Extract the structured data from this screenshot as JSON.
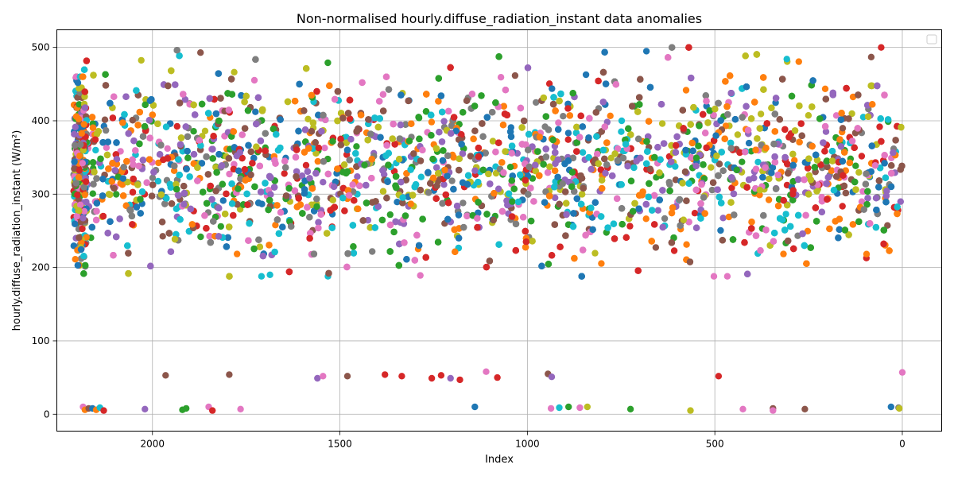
{
  "chart_data": {
    "type": "scatter",
    "title": "Non-normalised hourly.diffuse_radiation_instant data anomalies",
    "xlabel": "Index",
    "ylabel": "hourly.diffuse_radiation_instant (W/m²)",
    "x_inverted": true,
    "xlim": [
      2255,
      -105
    ],
    "ylim": [
      -23,
      524
    ],
    "x_ticks": [
      2000,
      1500,
      1000,
      500,
      0
    ],
    "y_ticks": [
      0,
      100,
      200,
      300,
      400,
      500
    ],
    "grid": true,
    "legend": "top-right, empty",
    "series_count_estimate": 220,
    "main_band": {
      "x_range": [
        2210,
        0
      ],
      "y_typical_range": [
        230,
        440
      ],
      "y_extreme_range": [
        188,
        500
      ],
      "colors": [
        "#1f77b4",
        "#ff7f0e",
        "#2ca02c",
        "#d62728",
        "#9467bd",
        "#8c564b",
        "#e377c2",
        "#7f7f7f",
        "#bcbd22",
        "#17becf"
      ]
    },
    "low_outliers": [
      {
        "x": 2185,
        "y": 10,
        "color": "#e377c2"
      },
      {
        "x": 2180,
        "y": 6,
        "color": "#ff7f0e"
      },
      {
        "x": 2170,
        "y": 8,
        "color": "#8c564b"
      },
      {
        "x": 2160,
        "y": 8,
        "color": "#1f77b4"
      },
      {
        "x": 2150,
        "y": 6,
        "color": "#ff7f0e"
      },
      {
        "x": 2140,
        "y": 9,
        "color": "#17becf"
      },
      {
        "x": 2130,
        "y": 5,
        "color": "#d62728"
      },
      {
        "x": 2020,
        "y": 7,
        "color": "#9467bd"
      },
      {
        "x": 1965,
        "y": 53,
        "color": "#8c564b"
      },
      {
        "x": 1920,
        "y": 6,
        "color": "#2ca02c"
      },
      {
        "x": 1910,
        "y": 8,
        "color": "#2ca02c"
      },
      {
        "x": 1850,
        "y": 10,
        "color": "#e377c2"
      },
      {
        "x": 1840,
        "y": 5,
        "color": "#d62728"
      },
      {
        "x": 1795,
        "y": 54,
        "color": "#8c564b"
      },
      {
        "x": 1765,
        "y": 7,
        "color": "#e377c2"
      },
      {
        "x": 1560,
        "y": 49,
        "color": "#9467bd"
      },
      {
        "x": 1545,
        "y": 52,
        "color": "#e377c2"
      },
      {
        "x": 1480,
        "y": 52,
        "color": "#8c564b"
      },
      {
        "x": 1380,
        "y": 54,
        "color": "#d62728"
      },
      {
        "x": 1335,
        "y": 52,
        "color": "#d62728"
      },
      {
        "x": 1255,
        "y": 49,
        "color": "#d62728"
      },
      {
        "x": 1230,
        "y": 53,
        "color": "#d62728"
      },
      {
        "x": 1205,
        "y": 49,
        "color": "#9467bd"
      },
      {
        "x": 1180,
        "y": 47,
        "color": "#d62728"
      },
      {
        "x": 1140,
        "y": 10,
        "color": "#1f77b4"
      },
      {
        "x": 1110,
        "y": 58,
        "color": "#e377c2"
      },
      {
        "x": 1080,
        "y": 50,
        "color": "#d62728"
      },
      {
        "x": 945,
        "y": 55,
        "color": "#8c564b"
      },
      {
        "x": 935,
        "y": 51,
        "color": "#9467bd"
      },
      {
        "x": 937,
        "y": 8,
        "color": "#e377c2"
      },
      {
        "x": 915,
        "y": 9,
        "color": "#17becf"
      },
      {
        "x": 890,
        "y": 10,
        "color": "#2ca02c"
      },
      {
        "x": 860,
        "y": 9,
        "color": "#e377c2"
      },
      {
        "x": 840,
        "y": 10,
        "color": "#bcbd22"
      },
      {
        "x": 725,
        "y": 7,
        "color": "#2ca02c"
      },
      {
        "x": 565,
        "y": 5,
        "color": "#bcbd22"
      },
      {
        "x": 490,
        "y": 52,
        "color": "#d62728"
      },
      {
        "x": 425,
        "y": 7,
        "color": "#e377c2"
      },
      {
        "x": 345,
        "y": 8,
        "color": "#8c564b"
      },
      {
        "x": 345,
        "y": 5,
        "color": "#e377c2"
      },
      {
        "x": 260,
        "y": 7,
        "color": "#8c564b"
      },
      {
        "x": 30,
        "y": 10,
        "color": "#1f77b4"
      },
      {
        "x": 10,
        "y": 9,
        "color": "#7f7f7f"
      },
      {
        "x": 8,
        "y": 8,
        "color": "#bcbd22"
      },
      {
        "x": 0,
        "y": 57,
        "color": "#e377c2"
      }
    ]
  }
}
